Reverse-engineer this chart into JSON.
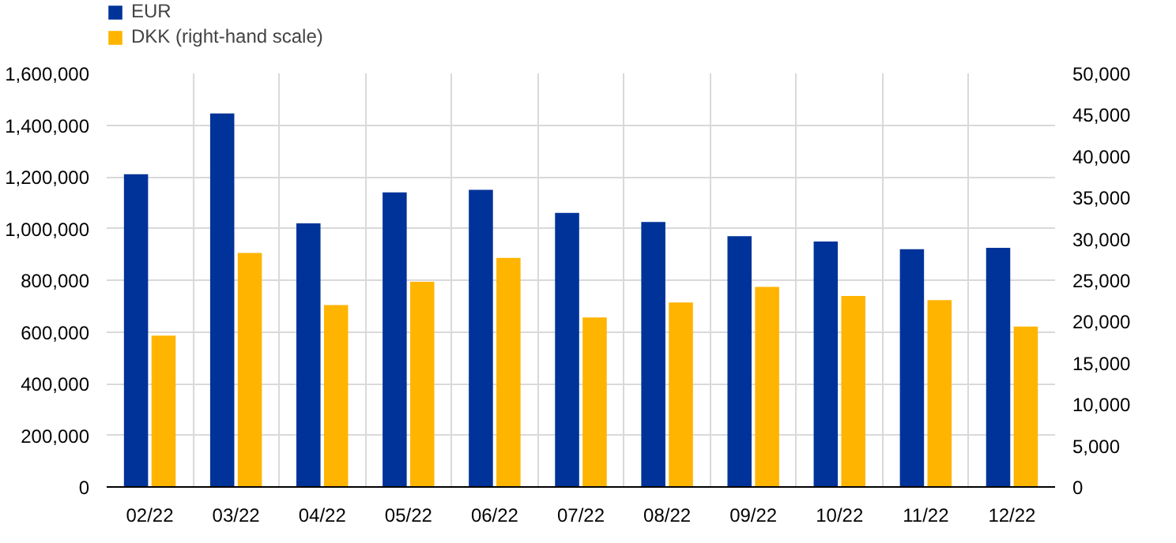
{
  "chart_data": {
    "type": "bar",
    "categories": [
      "02/22",
      "03/22",
      "04/22",
      "05/22",
      "06/22",
      "07/22",
      "08/22",
      "09/22",
      "10/22",
      "11/22",
      "12/22"
    ],
    "series": [
      {
        "name": "EUR",
        "color": "#003399",
        "values": [
          1210000,
          1445000,
          1020000,
          1140000,
          1150000,
          1060000,
          1025000,
          970000,
          950000,
          920000,
          925000
        ]
      },
      {
        "name": "DKK (right-hand scale)",
        "color": "#ffb400",
        "axis": "y2",
        "values": [
          18300,
          28300,
          22000,
          24800,
          27700,
          20500,
          22300,
          24200,
          23100,
          22600,
          19400
        ]
      }
    ],
    "ylim": [
      0,
      1600000
    ],
    "yticks": [
      {
        "value": 0,
        "label": "0"
      },
      {
        "value": 200000,
        "label": "200,000"
      },
      {
        "value": 400000,
        "label": "400,000"
      },
      {
        "value": 600000,
        "label": "600,000"
      },
      {
        "value": 800000,
        "label": "800,000"
      },
      {
        "value": 1000000,
        "label": "1,000,000"
      },
      {
        "value": 1200000,
        "label": "1,200,000"
      },
      {
        "value": 1400000,
        "label": "1,400,000"
      },
      {
        "value": 1600000,
        "label": "1,600,000"
      }
    ],
    "y2lim": [
      0,
      50000
    ],
    "y2ticks": [
      {
        "value": 0,
        "label": "0"
      },
      {
        "value": 5000,
        "label": "5,000"
      },
      {
        "value": 10000,
        "label": "10,000"
      },
      {
        "value": 15000,
        "label": "15,000"
      },
      {
        "value": 20000,
        "label": "20,000"
      },
      {
        "value": 25000,
        "label": "25,000"
      },
      {
        "value": 30000,
        "label": "30,000"
      },
      {
        "value": 35000,
        "label": "35,000"
      },
      {
        "value": 40000,
        "label": "40,000"
      },
      {
        "value": 45000,
        "label": "45,000"
      },
      {
        "value": 50000,
        "label": "50,000"
      }
    ],
    "grid": true,
    "legend": "top left"
  }
}
